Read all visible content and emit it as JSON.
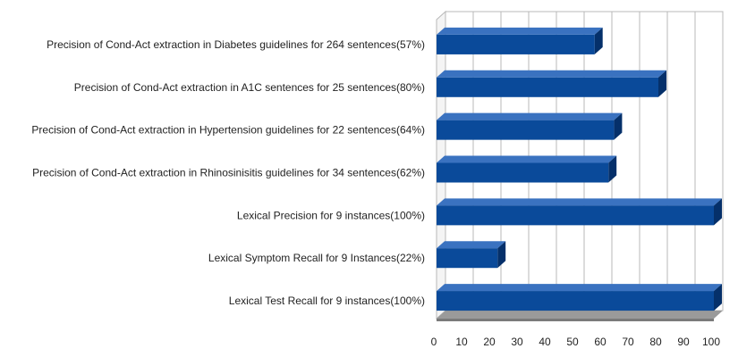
{
  "chart_data": {
    "type": "bar",
    "orientation": "horizontal",
    "three_d": true,
    "categories": [
      "Precision of Cond-Act extraction in Diabetes guidelines for 264 sentences(57%)",
      "Precision of Cond-Act extraction in A1C sentences for 25 sentences(80%)",
      "Precision of Cond-Act extraction in Hypertension guidelines for 22 sentences(64%)",
      "Precision of Cond-Act extraction in Rhinosinisitis guidelines for 34 sentences(62%)",
      "Lexical Precision for 9 instances(100%)",
      "Lexical Symptom Recall for 9 Instances(22%)",
      "Lexical Test Recall for 9 instances(100%)"
    ],
    "values": [
      57,
      80,
      64,
      62,
      100,
      22,
      100
    ],
    "xlim": [
      0,
      100
    ],
    "ticks": [
      "0",
      "10",
      "20",
      "30",
      "40",
      "50",
      "60",
      "70",
      "80",
      "90",
      "100"
    ],
    "grid": true,
    "legend": "none",
    "colors": {
      "bar_front": "#0a4a9a",
      "bar_top": "#3a72c0",
      "bar_side": "#05306a",
      "grid": "#b8b8b8",
      "floor": "#9a9a9a"
    }
  }
}
